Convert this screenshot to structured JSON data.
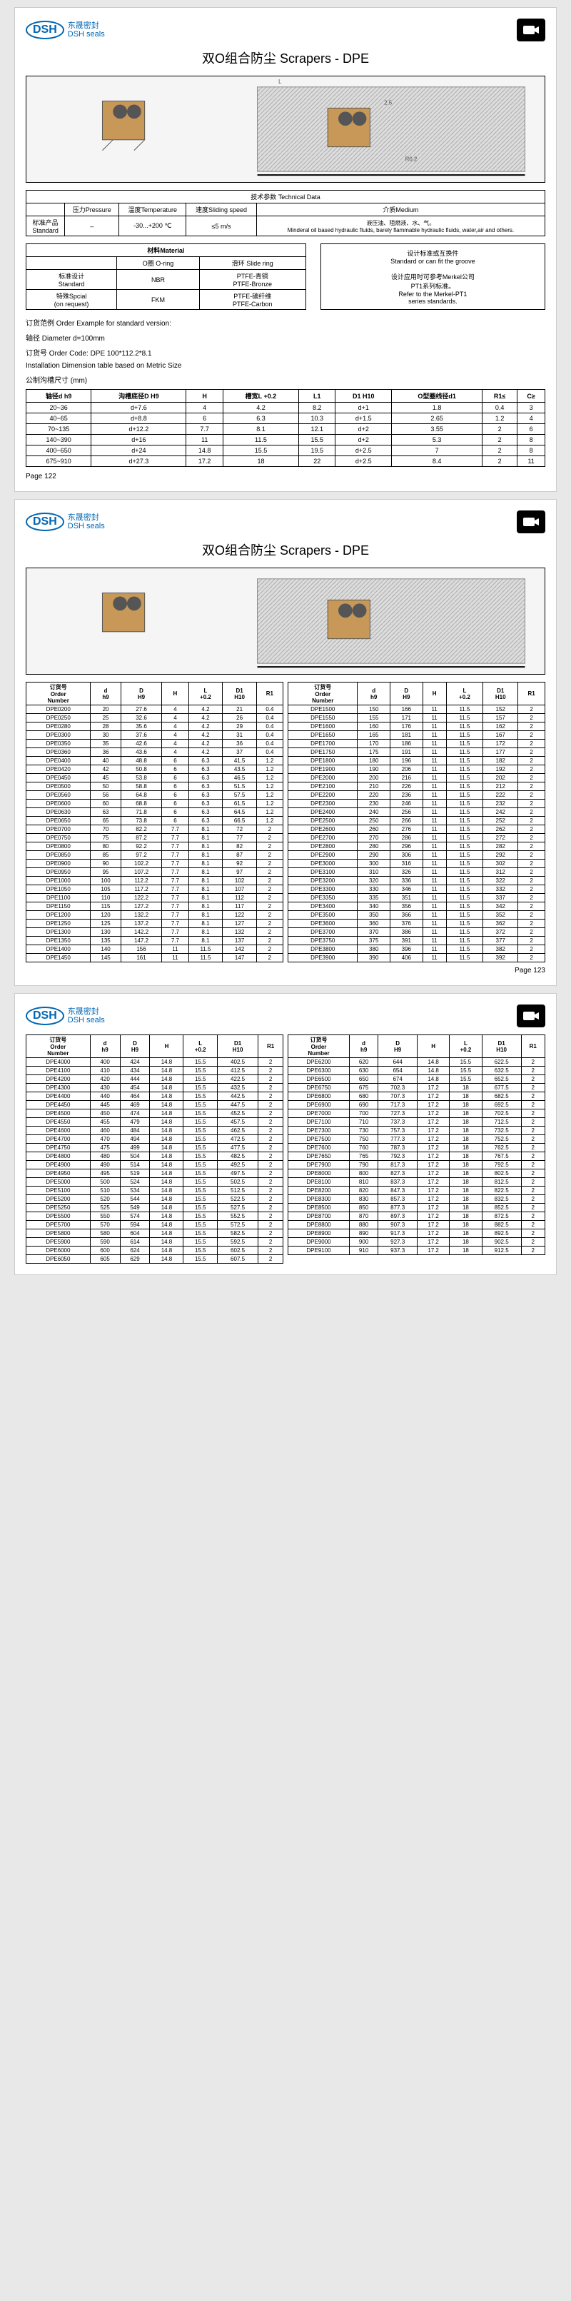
{
  "logo": {
    "brand": "DSH",
    "cn": "东晟密封",
    "en": "DSH seals"
  },
  "title": "双O组合防尘 Scrapers - DPE",
  "tech": {
    "header": "技术参数 Technical Data",
    "cols": [
      "压力Pressure",
      "温度Temperature",
      "速度Sliding speed",
      "介质Medium"
    ],
    "rowLabel": "标准产品\nStandard",
    "vals": [
      "–",
      "-30...+200 ℃",
      "≤5 m/s",
      "Minderal oil based hydraulic fluids, barely flammable hydraulic fluids, water,air and others."
    ],
    "mediumCn": "液压油、阻燃液、水、气。"
  },
  "material": {
    "header": "材料Material",
    "cols": [
      "O圈 O-ring",
      "滑环 Slide ring"
    ],
    "rows": [
      {
        "label": "标准设计\nStandard",
        "v1": "NBR",
        "v2": "PTFE-青铜\nPTFE-Bronze"
      },
      {
        "label": "特殊Spcial\n(on request)",
        "v1": "FKM",
        "v2": "PTFE-碳纤维\nPTFE-Carbon"
      }
    ]
  },
  "stdBox": {
    "l1": "设计标准或互换件",
    "l2": "Standard or can fit the groove",
    "l3": "设计应用时可参考Merkel公司\nPT1系列标准。",
    "l4": "Refer to the Merkel-PT1\nseries standards."
  },
  "order": {
    "l1": "订货范例  Order Example for standard version:",
    "l2": "轴径  Diameter  d=100mm",
    "l3": "订货号 Order Code:   DPE 100*112.2*8.1"
  },
  "dimTitle": "Installation Dimension table based on Metric Size",
  "dimSub": "公制沟槽尺寸 (mm)",
  "dimCols": [
    "轴径d h9",
    "沟槽底径D H9",
    "H",
    "槽宽L +0.2",
    "L1",
    "D1 H10",
    "O型圈线径d1",
    "R1≤",
    "C≥"
  ],
  "dimRows": [
    [
      "20~36",
      "d+7.6",
      "4",
      "4.2",
      "8.2",
      "d+1",
      "1.8",
      "0.4",
      "3"
    ],
    [
      "40~65",
      "d+8.8",
      "6",
      "6.3",
      "10.3",
      "d+1.5",
      "2.65",
      "1.2",
      "4"
    ],
    [
      "70~135",
      "d+12.2",
      "7.7",
      "8.1",
      "12.1",
      "d+2",
      "3.55",
      "2",
      "6"
    ],
    [
      "140~390",
      "d+16",
      "11",
      "11.5",
      "15.5",
      "d+2",
      "5.3",
      "2",
      "8"
    ],
    [
      "400~650",
      "d+24",
      "14.8",
      "15.5",
      "19.5",
      "d+2.5",
      "7",
      "2",
      "8"
    ],
    [
      "675~910",
      "d+27.3",
      "17.2",
      "18",
      "22",
      "d+2.5",
      "8.4",
      "2",
      "11"
    ]
  ],
  "pg1": "Page 122",
  "partCols": [
    "订货号\nOrder\nNumber",
    "d\nh9",
    "D\nH9",
    "H",
    "L\n+0.2",
    "D1\nH10",
    "R1"
  ],
  "parts1L": [
    [
      "DPE0200",
      "20",
      "27.6",
      "4",
      "4.2",
      "21",
      "0.4"
    ],
    [
      "DPE0250",
      "25",
      "32.6",
      "4",
      "4.2",
      "26",
      "0.4"
    ],
    [
      "DPE0280",
      "28",
      "35.6",
      "4",
      "4.2",
      "29",
      "0.4"
    ],
    [
      "DPE0300",
      "30",
      "37.6",
      "4",
      "4.2",
      "31",
      "0.4"
    ],
    [
      "DPE0350",
      "35",
      "42.6",
      "4",
      "4.2",
      "36",
      "0.4"
    ],
    [
      "DPE0360",
      "36",
      "43.6",
      "4",
      "4.2",
      "37",
      "0.4"
    ],
    [
      "DPE0400",
      "40",
      "48.8",
      "6",
      "6.3",
      "41.5",
      "1.2"
    ],
    [
      "DPE0420",
      "42",
      "50.8",
      "6",
      "6.3",
      "43.5",
      "1.2"
    ],
    [
      "DPE0450",
      "45",
      "53.8",
      "6",
      "6.3",
      "46.5",
      "1.2"
    ],
    [
      "DPE0500",
      "50",
      "58.8",
      "6",
      "6.3",
      "51.5",
      "1.2"
    ],
    [
      "DPE0560",
      "56",
      "64.8",
      "6",
      "6.3",
      "57.5",
      "1.2"
    ],
    [
      "DPE0600",
      "60",
      "68.8",
      "6",
      "6.3",
      "61.5",
      "1.2"
    ],
    [
      "DPE0630",
      "63",
      "71.8",
      "6",
      "6.3",
      "64.5",
      "1.2"
    ],
    [
      "DPE0650",
      "65",
      "73.8",
      "6",
      "6.3",
      "66.5",
      "1.2"
    ],
    [
      "DPE0700",
      "70",
      "82.2",
      "7.7",
      "8.1",
      "72",
      "2"
    ],
    [
      "DPE0750",
      "75",
      "87.2",
      "7.7",
      "8.1",
      "77",
      "2"
    ],
    [
      "DPE0800",
      "80",
      "92.2",
      "7.7",
      "8.1",
      "82",
      "2"
    ],
    [
      "DPE0850",
      "85",
      "97.2",
      "7.7",
      "8.1",
      "87",
      "2"
    ],
    [
      "DPE0900",
      "90",
      "102.2",
      "7.7",
      "8.1",
      "92",
      "2"
    ],
    [
      "DPE0950",
      "95",
      "107.2",
      "7.7",
      "8.1",
      "97",
      "2"
    ],
    [
      "DPE1000",
      "100",
      "112.2",
      "7.7",
      "8.1",
      "102",
      "2"
    ],
    [
      "DPE1050",
      "105",
      "117.2",
      "7.7",
      "8.1",
      "107",
      "2"
    ],
    [
      "DPE1100",
      "110",
      "122.2",
      "7.7",
      "8.1",
      "112",
      "2"
    ],
    [
      "DPE1150",
      "115",
      "127.2",
      "7.7",
      "8.1",
      "117",
      "2"
    ],
    [
      "DPE1200",
      "120",
      "132.2",
      "7.7",
      "8.1",
      "122",
      "2"
    ],
    [
      "DPE1250",
      "125",
      "137.2",
      "7.7",
      "8.1",
      "127",
      "2"
    ],
    [
      "DPE1300",
      "130",
      "142.2",
      "7.7",
      "8.1",
      "132",
      "2"
    ],
    [
      "DPE1350",
      "135",
      "147.2",
      "7.7",
      "8.1",
      "137",
      "2"
    ],
    [
      "DPE1400",
      "140",
      "156",
      "11",
      "11.5",
      "142",
      "2"
    ],
    [
      "DPE1450",
      "145",
      "161",
      "11",
      "11.5",
      "147",
      "2"
    ]
  ],
  "parts1R": [
    [
      "DPE1500",
      "150",
      "166",
      "11",
      "11.5",
      "152",
      "2"
    ],
    [
      "DPE1550",
      "155",
      "171",
      "11",
      "11.5",
      "157",
      "2"
    ],
    [
      "DPE1600",
      "160",
      "176",
      "11",
      "11.5",
      "162",
      "2"
    ],
    [
      "DPE1650",
      "165",
      "181",
      "11",
      "11.5",
      "167",
      "2"
    ],
    [
      "DPE1700",
      "170",
      "186",
      "11",
      "11.5",
      "172",
      "2"
    ],
    [
      "DPE1750",
      "175",
      "191",
      "11",
      "11.5",
      "177",
      "2"
    ],
    [
      "DPE1800",
      "180",
      "196",
      "11",
      "11.5",
      "182",
      "2"
    ],
    [
      "DPE1900",
      "190",
      "206",
      "11",
      "11.5",
      "192",
      "2"
    ],
    [
      "DPE2000",
      "200",
      "216",
      "11",
      "11.5",
      "202",
      "2"
    ],
    [
      "DPE2100",
      "210",
      "226",
      "11",
      "11.5",
      "212",
      "2"
    ],
    [
      "DPE2200",
      "220",
      "236",
      "11",
      "11.5",
      "222",
      "2"
    ],
    [
      "DPE2300",
      "230",
      "246",
      "11",
      "11.5",
      "232",
      "2"
    ],
    [
      "DPE2400",
      "240",
      "256",
      "11",
      "11.5",
      "242",
      "2"
    ],
    [
      "DPE2500",
      "250",
      "266",
      "11",
      "11.5",
      "252",
      "2"
    ],
    [
      "DPE2600",
      "260",
      "276",
      "11",
      "11.5",
      "262",
      "2"
    ],
    [
      "DPE2700",
      "270",
      "286",
      "11",
      "11.5",
      "272",
      "2"
    ],
    [
      "DPE2800",
      "280",
      "296",
      "11",
      "11.5",
      "282",
      "2"
    ],
    [
      "DPE2900",
      "290",
      "306",
      "11",
      "11.5",
      "292",
      "2"
    ],
    [
      "DPE3000",
      "300",
      "316",
      "11",
      "11.5",
      "302",
      "2"
    ],
    [
      "DPE3100",
      "310",
      "326",
      "11",
      "11.5",
      "312",
      "2"
    ],
    [
      "DPE3200",
      "320",
      "336",
      "11",
      "11.5",
      "322",
      "2"
    ],
    [
      "DPE3300",
      "330",
      "346",
      "11",
      "11.5",
      "332",
      "2"
    ],
    [
      "DPE3350",
      "335",
      "351",
      "11",
      "11.5",
      "337",
      "2"
    ],
    [
      "DPE3400",
      "340",
      "356",
      "11",
      "11.5",
      "342",
      "2"
    ],
    [
      "DPE3500",
      "350",
      "366",
      "11",
      "11.5",
      "352",
      "2"
    ],
    [
      "DPE3600",
      "360",
      "376",
      "11",
      "11.5",
      "362",
      "2"
    ],
    [
      "DPE3700",
      "370",
      "386",
      "11",
      "11.5",
      "372",
      "2"
    ],
    [
      "DPE3750",
      "375",
      "391",
      "11",
      "11.5",
      "377",
      "2"
    ],
    [
      "DPE3800",
      "380",
      "396",
      "11",
      "11.5",
      "382",
      "2"
    ],
    [
      "DPE3900",
      "390",
      "406",
      "11",
      "11.5",
      "392",
      "2"
    ]
  ],
  "pg2": "Page 123",
  "parts2L": [
    [
      "DPE4000",
      "400",
      "424",
      "14.8",
      "15.5",
      "402.5",
      "2"
    ],
    [
      "DPE4100",
      "410",
      "434",
      "14.8",
      "15.5",
      "412.5",
      "2"
    ],
    [
      "DPE4200",
      "420",
      "444",
      "14.8",
      "15.5",
      "422.5",
      "2"
    ],
    [
      "DPE4300",
      "430",
      "454",
      "14.8",
      "15.5",
      "432.5",
      "2"
    ],
    [
      "DPE4400",
      "440",
      "464",
      "14.8",
      "15.5",
      "442.5",
      "2"
    ],
    [
      "DPE4450",
      "445",
      "469",
      "14.8",
      "15.5",
      "447.5",
      "2"
    ],
    [
      "DPE4500",
      "450",
      "474",
      "14.8",
      "15.5",
      "452.5",
      "2"
    ],
    [
      "DPE4550",
      "455",
      "479",
      "14.8",
      "15.5",
      "457.5",
      "2"
    ],
    [
      "DPE4600",
      "460",
      "484",
      "14.8",
      "15.5",
      "462.5",
      "2"
    ],
    [
      "DPE4700",
      "470",
      "494",
      "14.8",
      "15.5",
      "472.5",
      "2"
    ],
    [
      "DPE4750",
      "475",
      "499",
      "14.8",
      "15.5",
      "477.5",
      "2"
    ],
    [
      "DPE4800",
      "480",
      "504",
      "14.8",
      "15.5",
      "482.5",
      "2"
    ],
    [
      "DPE4900",
      "490",
      "514",
      "14.8",
      "15.5",
      "492.5",
      "2"
    ],
    [
      "DPE4950",
      "495",
      "519",
      "14.8",
      "15.5",
      "497.5",
      "2"
    ],
    [
      "DPE5000",
      "500",
      "524",
      "14.8",
      "15.5",
      "502.5",
      "2"
    ],
    [
      "DPE5100",
      "510",
      "534",
      "14.8",
      "15.5",
      "512.5",
      "2"
    ],
    [
      "DPE5200",
      "520",
      "544",
      "14.8",
      "15.5",
      "522.5",
      "2"
    ],
    [
      "DPE5250",
      "525",
      "549",
      "14.8",
      "15.5",
      "527.5",
      "2"
    ],
    [
      "DPE5500",
      "550",
      "574",
      "14.8",
      "15.5",
      "552.5",
      "2"
    ],
    [
      "DPE5700",
      "570",
      "594",
      "14.8",
      "15.5",
      "572.5",
      "2"
    ],
    [
      "DPE5800",
      "580",
      "604",
      "14.8",
      "15.5",
      "582.5",
      "2"
    ],
    [
      "DPE5900",
      "590",
      "614",
      "14.8",
      "15.5",
      "592.5",
      "2"
    ],
    [
      "DPE6000",
      "600",
      "624",
      "14.8",
      "15.5",
      "602.5",
      "2"
    ],
    [
      "DPE6050",
      "605",
      "629",
      "14.8",
      "15.5",
      "607.5",
      "2"
    ]
  ],
  "parts2R": [
    [
      "DPE6200",
      "620",
      "644",
      "14.8",
      "15.5",
      "622.5",
      "2"
    ],
    [
      "DPE6300",
      "630",
      "654",
      "14.8",
      "15.5",
      "632.5",
      "2"
    ],
    [
      "DPE6500",
      "650",
      "674",
      "14.8",
      "15.5",
      "652.5",
      "2"
    ],
    [
      "DPE6750",
      "675",
      "702.3",
      "17.2",
      "18",
      "677.5",
      "2"
    ],
    [
      "DPE6800",
      "680",
      "707.3",
      "17.2",
      "18",
      "682.5",
      "2"
    ],
    [
      "DPE6900",
      "690",
      "717.3",
      "17.2",
      "18",
      "692.5",
      "2"
    ],
    [
      "DPE7000",
      "700",
      "727.3",
      "17.2",
      "18",
      "702.5",
      "2"
    ],
    [
      "DPE7100",
      "710",
      "737.3",
      "17.2",
      "18",
      "712.5",
      "2"
    ],
    [
      "DPE7300",
      "730",
      "757.3",
      "17.2",
      "18",
      "732.5",
      "2"
    ],
    [
      "DPE7500",
      "750",
      "777.3",
      "17.2",
      "18",
      "752.5",
      "2"
    ],
    [
      "DPE7600",
      "760",
      "787.3",
      "17.2",
      "18",
      "762.5",
      "2"
    ],
    [
      "DPE7650",
      "765",
      "792.3",
      "17.2",
      "18",
      "767.5",
      "2"
    ],
    [
      "DPE7900",
      "790",
      "817.3",
      "17.2",
      "18",
      "792.5",
      "2"
    ],
    [
      "DPE8000",
      "800",
      "827.3",
      "17.2",
      "18",
      "802.5",
      "2"
    ],
    [
      "DPE8100",
      "810",
      "837.3",
      "17.2",
      "18",
      "812.5",
      "2"
    ],
    [
      "DPE8200",
      "820",
      "847.3",
      "17.2",
      "18",
      "822.5",
      "2"
    ],
    [
      "DPE8300",
      "830",
      "857.3",
      "17.2",
      "18",
      "832.5",
      "2"
    ],
    [
      "DPE8500",
      "850",
      "877.3",
      "17.2",
      "18",
      "852.5",
      "2"
    ],
    [
      "DPE8700",
      "870",
      "897.3",
      "17.2",
      "18",
      "872.5",
      "2"
    ],
    [
      "DPE8800",
      "880",
      "907.3",
      "17.2",
      "18",
      "882.5",
      "2"
    ],
    [
      "DPE8900",
      "890",
      "917.3",
      "17.2",
      "18",
      "892.5",
      "2"
    ],
    [
      "DPE9000",
      "900",
      "927.3",
      "17.2",
      "18",
      "902.5",
      "2"
    ],
    [
      "DPE9100",
      "910",
      "937.3",
      "17.2",
      "18",
      "912.5",
      "2"
    ]
  ]
}
